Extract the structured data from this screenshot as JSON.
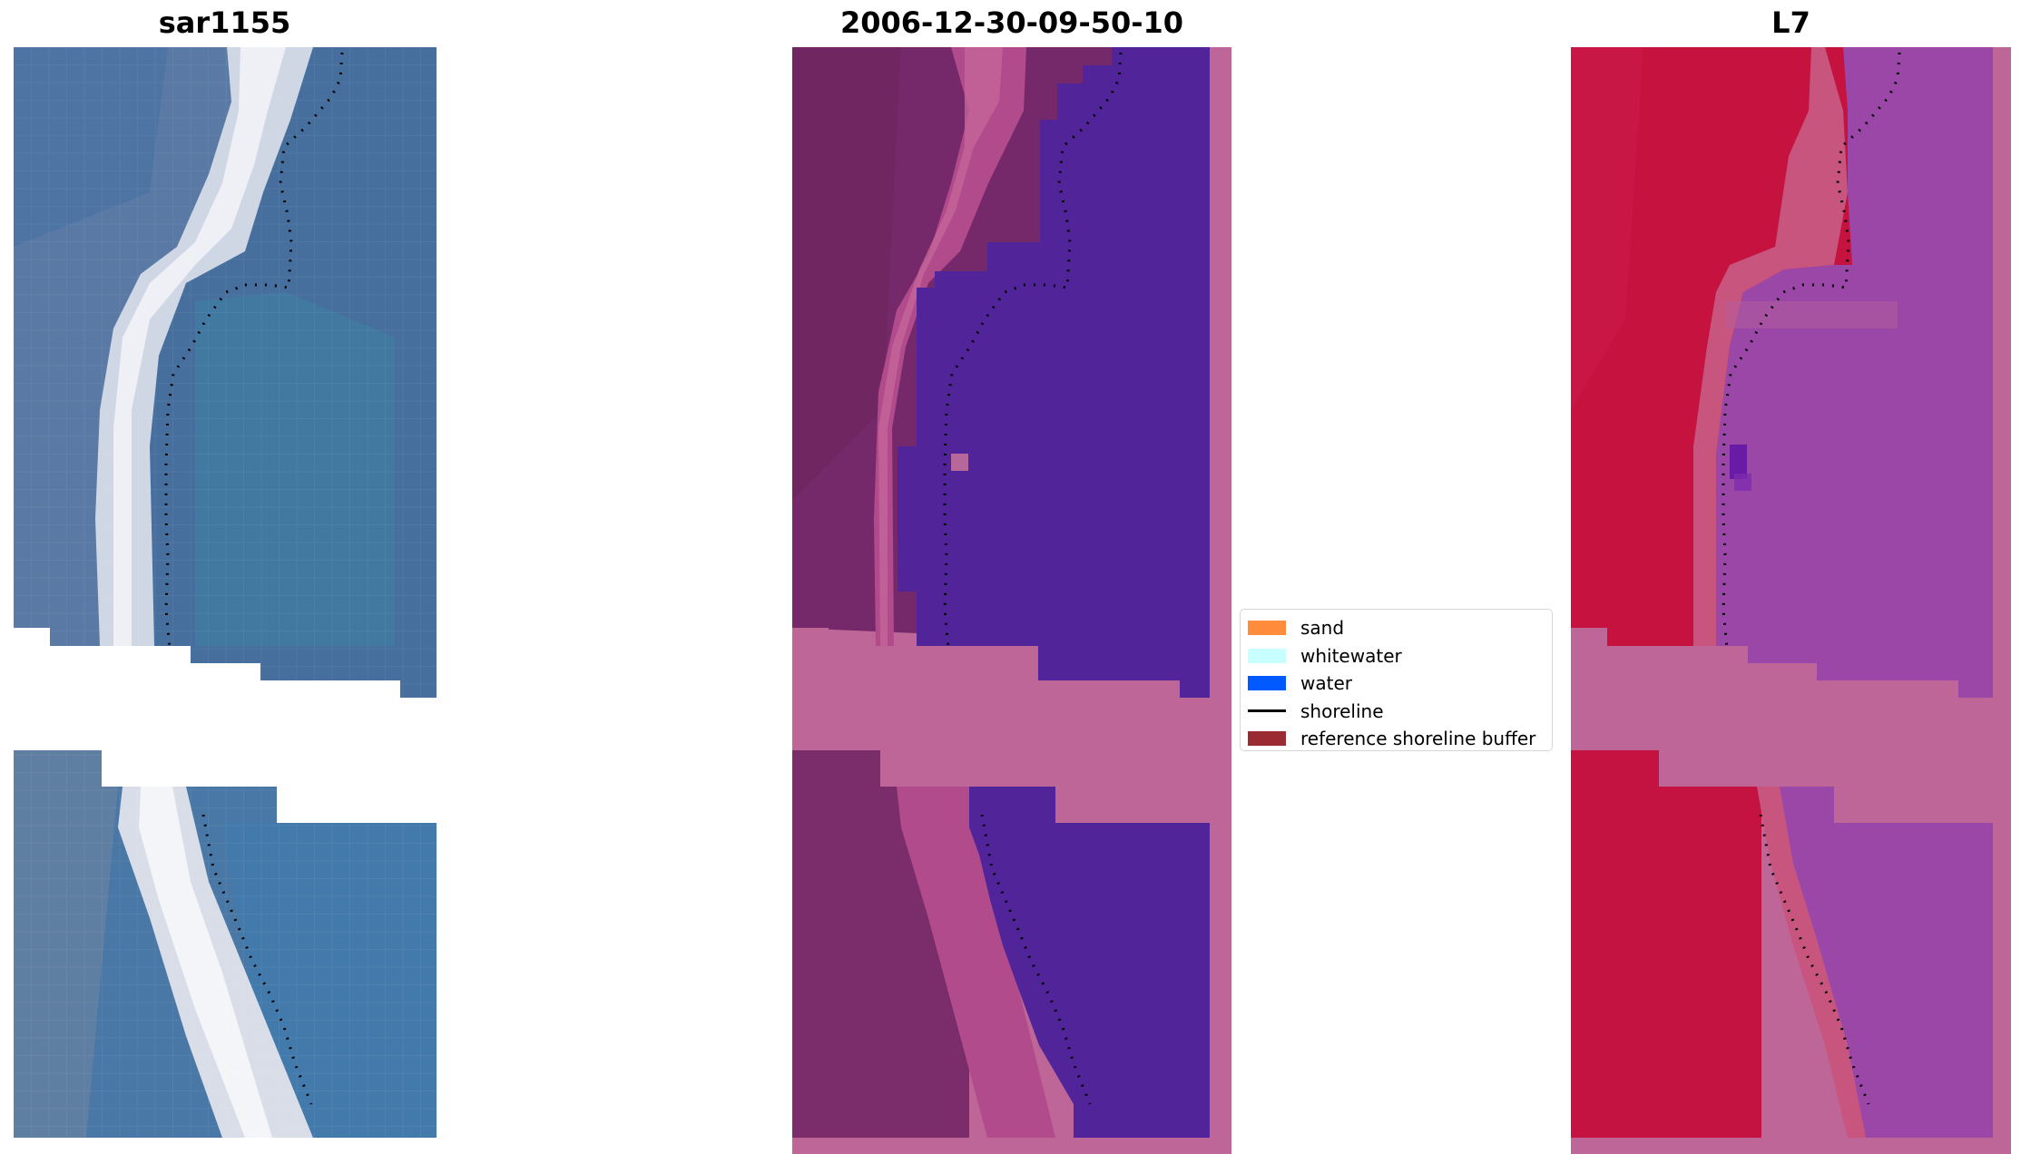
{
  "panels": {
    "left": {
      "title": "sar1155"
    },
    "middle": {
      "title": "2006-12-30-09-50-10"
    },
    "right": {
      "title": "L7"
    }
  },
  "legend": {
    "items": [
      {
        "label": "sand",
        "color": "#ff8c3a",
        "kind": "patch"
      },
      {
        "label": "whitewater",
        "color": "#c8ffff",
        "kind": "patch"
      },
      {
        "label": "water",
        "color": "#005aff",
        "kind": "patch"
      },
      {
        "label": "shoreline",
        "color": "#000000",
        "kind": "line"
      },
      {
        "label": "reference shoreline buffer",
        "color": "#9b2b33",
        "kind": "patch"
      }
    ]
  },
  "colors": {
    "rgb_water": "#3f6f9c",
    "rgb_sand": "#d9dde8",
    "class_land": "#7a2c6a",
    "class_buffer": "#c26591",
    "class_water": "#52249a",
    "mndwi_land": "#c51341",
    "mndwi_water": "#9a47a8",
    "nodata_mask": "#bd6697"
  }
}
